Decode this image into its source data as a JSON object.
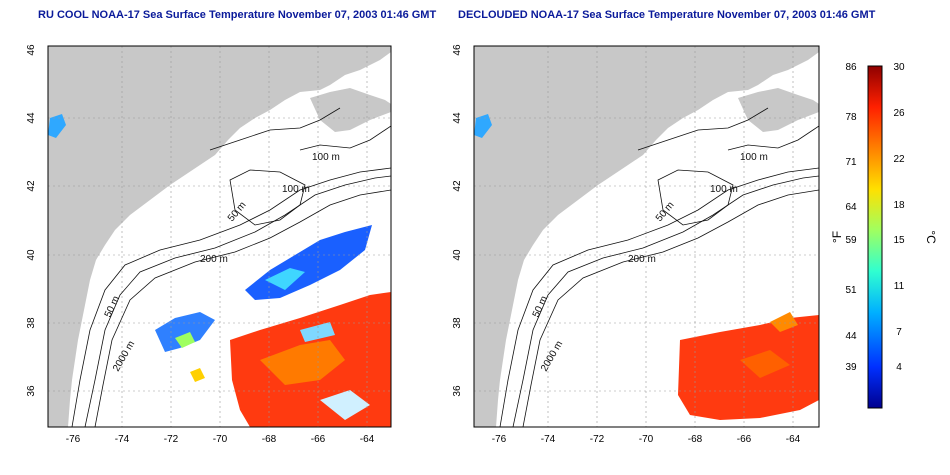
{
  "left_panel": {
    "title": "RU COOL NOAA-17 Sea Surface Temperature November 07, 2003 01:46 GMT",
    "x_ticks": [
      "-76",
      "-74",
      "-72",
      "-70",
      "-68",
      "-66",
      "-64"
    ],
    "y_ticks": [
      "36",
      "38",
      "40",
      "42",
      "44",
      "46"
    ],
    "contour_labels": [
      "100 m",
      "100 m",
      "50 m",
      "200 m",
      "50 m",
      "2000 m"
    ]
  },
  "right_panel": {
    "title": "DECLOUDED NOAA-17 Sea Surface Temperature November 07, 2003 01:46 GMT",
    "x_ticks": [
      "-76",
      "-74",
      "-72",
      "-70",
      "-68",
      "-66",
      "-64"
    ],
    "y_ticks": [
      "36",
      "38",
      "40",
      "42",
      "44",
      "46"
    ],
    "contour_labels": [
      "100 m",
      "100 m",
      "50 m",
      "200 m",
      "50 m",
      "2000 m"
    ]
  },
  "colorbar": {
    "fahrenheit_label": "°F",
    "celsius_label": "°C",
    "fahrenheit_ticks": [
      "86",
      "78",
      "71",
      "64",
      "59",
      "51",
      "44",
      "39"
    ],
    "celsius_ticks": [
      "30",
      "26",
      "22",
      "18",
      "15",
      "11",
      "7",
      "4"
    ],
    "colors": [
      "#00008f",
      "#0030ff",
      "#00b0ff",
      "#30ffd0",
      "#a0ff60",
      "#ffe000",
      "#ff8000",
      "#ff2000",
      "#8f0000"
    ]
  },
  "colors": {
    "land": "#c8c8c8",
    "ocean": "#ffffff",
    "title": "#0a1a9a",
    "contour": "#111111",
    "grid": "#999999"
  }
}
